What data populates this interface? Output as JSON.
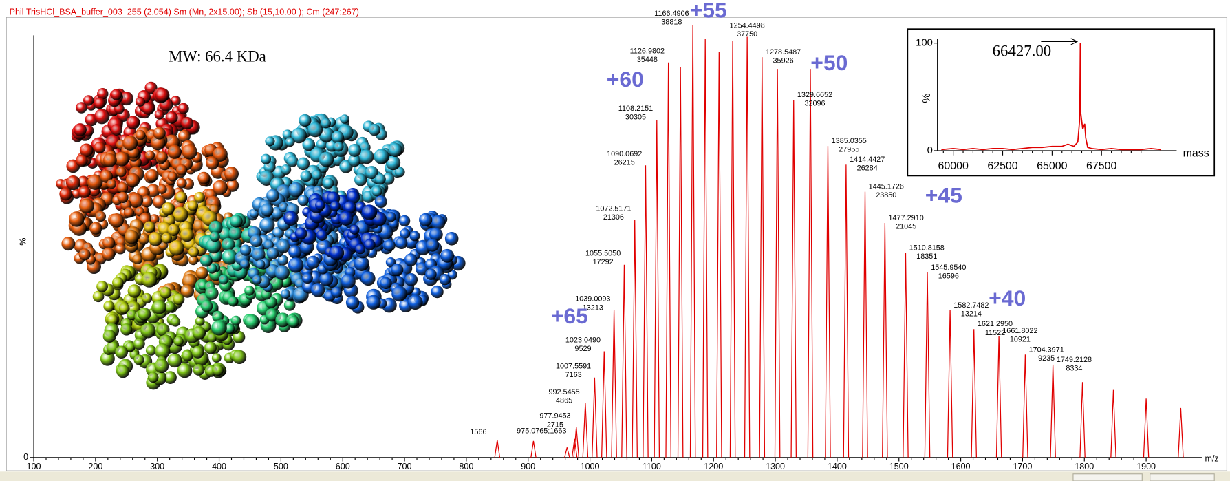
{
  "header": "Phil TrisHCl_BSA_buffer_003  255 (2.054) Sm (Mn, 2x15.00); Sb (15,10.00 ); Cm (247:267)",
  "chart_data": [
    {
      "type": "spectrum",
      "annotation": "MW: 66.4 KDa",
      "xlabel": "m/z",
      "ylabel": "%",
      "xlim": [
        100,
        1990
      ],
      "xticks": [
        100,
        200,
        300,
        400,
        500,
        600,
        700,
        800,
        900,
        1000,
        1100,
        1200,
        1300,
        1400,
        1500,
        1600,
        1700,
        1800,
        1900
      ],
      "ylim": [
        0,
        40000
      ],
      "yticks": [
        0
      ],
      "color": "#e00000",
      "peaks": {
        "x": [
          850,
          975.0765,
          977.9453,
          992.5455,
          1007.5591,
          1023.049,
          1039.0093,
          1055.505,
          1072.5171,
          1090.0692,
          1108.2151,
          1126.9802,
          1166.4906,
          1254.4498,
          1278.5487,
          1329.6652,
          1385.0355,
          1414.4427,
          1445.1726,
          1477.291,
          1510.8158,
          1545.954,
          1582.7482,
          1621.295,
          1661.8022,
          1704.3971,
          1749.2128
        ],
        "values": [
          1566,
          1663,
          2715,
          4865,
          7163,
          9529,
          13213,
          17292,
          21306,
          26215,
          30305,
          35448,
          38818,
          37750,
          35926,
          32096,
          27955,
          26284,
          23850,
          21045,
          18351,
          16596,
          13214,
          11522,
          10921,
          9235,
          8334
        ],
        "x_labels": [
          null,
          null,
          "977.9453",
          "992.5455",
          "1007.5591",
          "1023.0490",
          "1039.0093",
          "1055.5050",
          "1072.5171",
          "1090.0692",
          "1108.2151",
          "1126.9802",
          "1166.4906",
          "1254.4498",
          "1278.5487",
          "1329.6652",
          "1385.0355",
          "1414.4427",
          "1445.1726",
          "1477.2910",
          "1510.8158",
          "1545.9540",
          "1582.7482",
          "1621.2950",
          "1661.8022",
          "1704.3971",
          "1749.2128"
        ],
        "value_labels": [
          "1566",
          "975.0765;1663",
          null,
          null,
          null,
          null,
          null,
          null,
          null,
          null,
          null,
          null,
          null,
          null,
          null,
          null,
          null,
          null,
          null,
          null,
          null,
          null,
          null,
          null,
          null,
          null,
          null
        ]
      },
      "minor_peaks": {
        "x": [
          908.6,
          963,
          1146.5,
          1186.6,
          1209,
          1231,
          1303.4,
          1356.7,
          1797,
          1847,
          1900,
          1956
        ],
        "values": [
          1480,
          900,
          35000,
          37550,
          36400,
          37400,
          34870,
          34870,
          6760,
          6060,
          5280,
          4440
        ]
      },
      "charge_labels": [
        "+55",
        "+50",
        "+60",
        "+45",
        "+65",
        "+40"
      ]
    },
    {
      "type": "line",
      "xlabel": "mass",
      "ylabel": "%",
      "annotation": "66427.00",
      "xlim": [
        59200,
        71300
      ],
      "xticks": [
        60000,
        62500,
        65000,
        67500
      ],
      "ylim": [
        0,
        100
      ],
      "yticks": [
        0,
        100
      ],
      "color": "#e00000",
      "x": [
        59400,
        60000,
        60500,
        61000,
        61500,
        62000,
        62500,
        63000,
        63500,
        64000,
        64500,
        65000,
        65500,
        65800,
        66100,
        66300,
        66400,
        66427,
        66450,
        66550,
        66650,
        66700,
        66800,
        67000,
        67500,
        68000,
        68500,
        69000,
        69500,
        70000,
        70500
      ],
      "values": [
        1,
        2,
        1,
        2,
        1,
        2,
        2,
        1,
        2,
        3,
        3,
        4,
        4,
        6,
        4,
        8,
        30,
        100,
        35,
        20,
        25,
        12,
        3,
        2,
        1,
        2,
        1,
        1,
        1,
        2,
        1
      ]
    }
  ]
}
